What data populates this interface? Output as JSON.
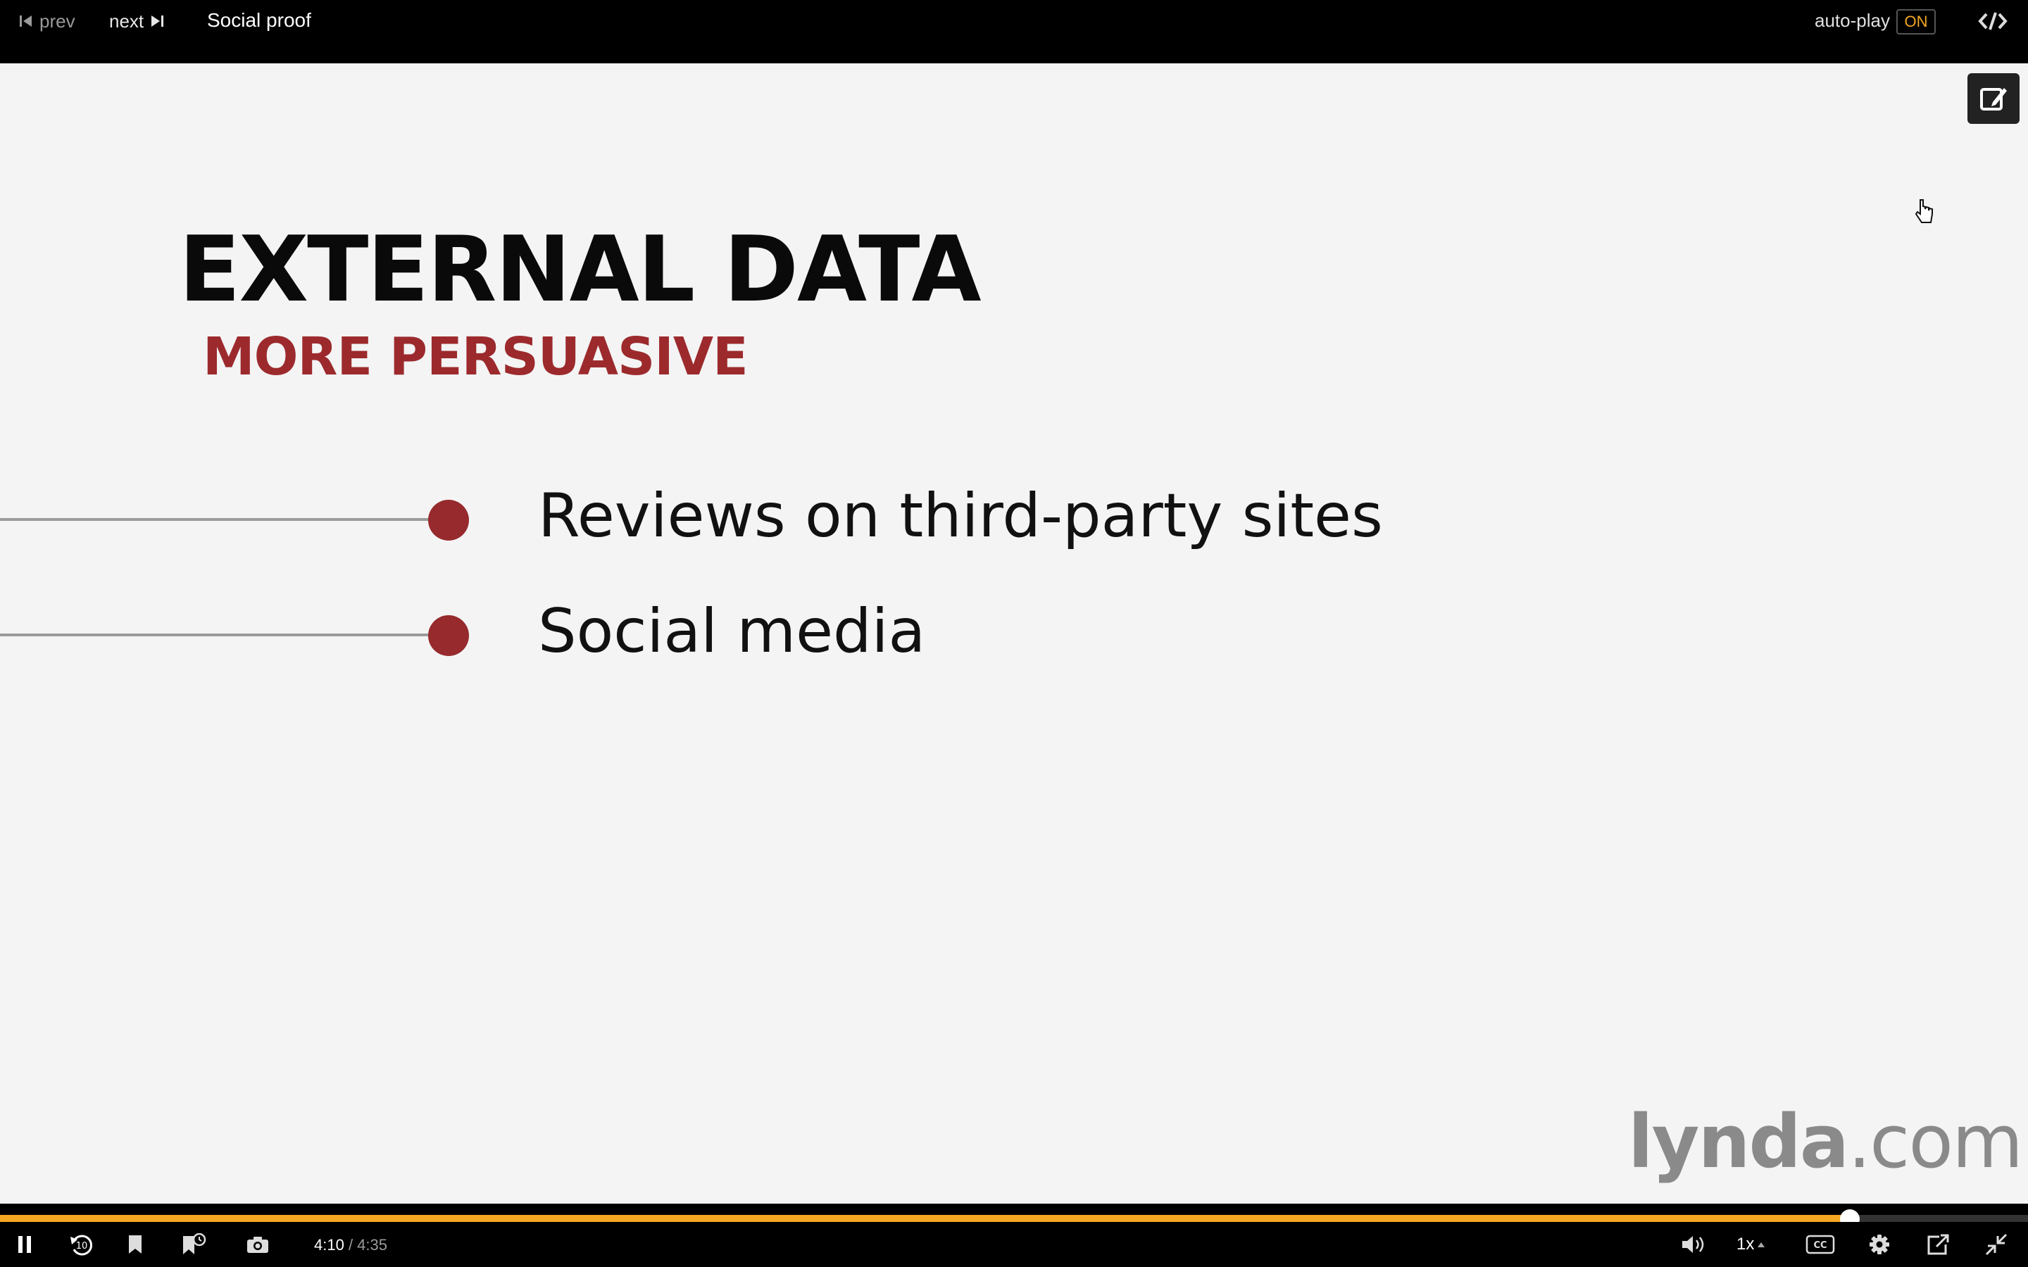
{
  "topbar": {
    "prev_label": "prev",
    "next_label": "next",
    "title": "Social proof",
    "autoplay_label": "auto-play",
    "autoplay_state": "ON"
  },
  "slide": {
    "heading": "EXTERNAL DATA",
    "subheading": "MORE PERSUASIVE",
    "bullets": [
      "Reviews on third-party sites",
      "Social media"
    ],
    "logo_main": "lynda",
    "logo_suffix": ".com"
  },
  "player": {
    "current_time": "4:10",
    "separator": " / ",
    "total_time": "4:35",
    "progress_fraction": 0.912,
    "speed": "1x",
    "accent_color": "#f5a623"
  },
  "icons": {
    "prev": "skip-back-icon",
    "next": "skip-forward-icon",
    "embed": "code-icon",
    "edit": "edit-note-icon",
    "pause": "pause-icon",
    "rewind": "rewind-10-icon",
    "bookmark": "bookmark-icon",
    "bookmark_add": "bookmark-clock-icon",
    "snapshot": "camera-icon",
    "volume": "volume-icon",
    "captions": "cc-icon",
    "settings": "gear-icon",
    "popout": "popout-icon",
    "exit_fullscreen": "exit-fullscreen-icon"
  }
}
